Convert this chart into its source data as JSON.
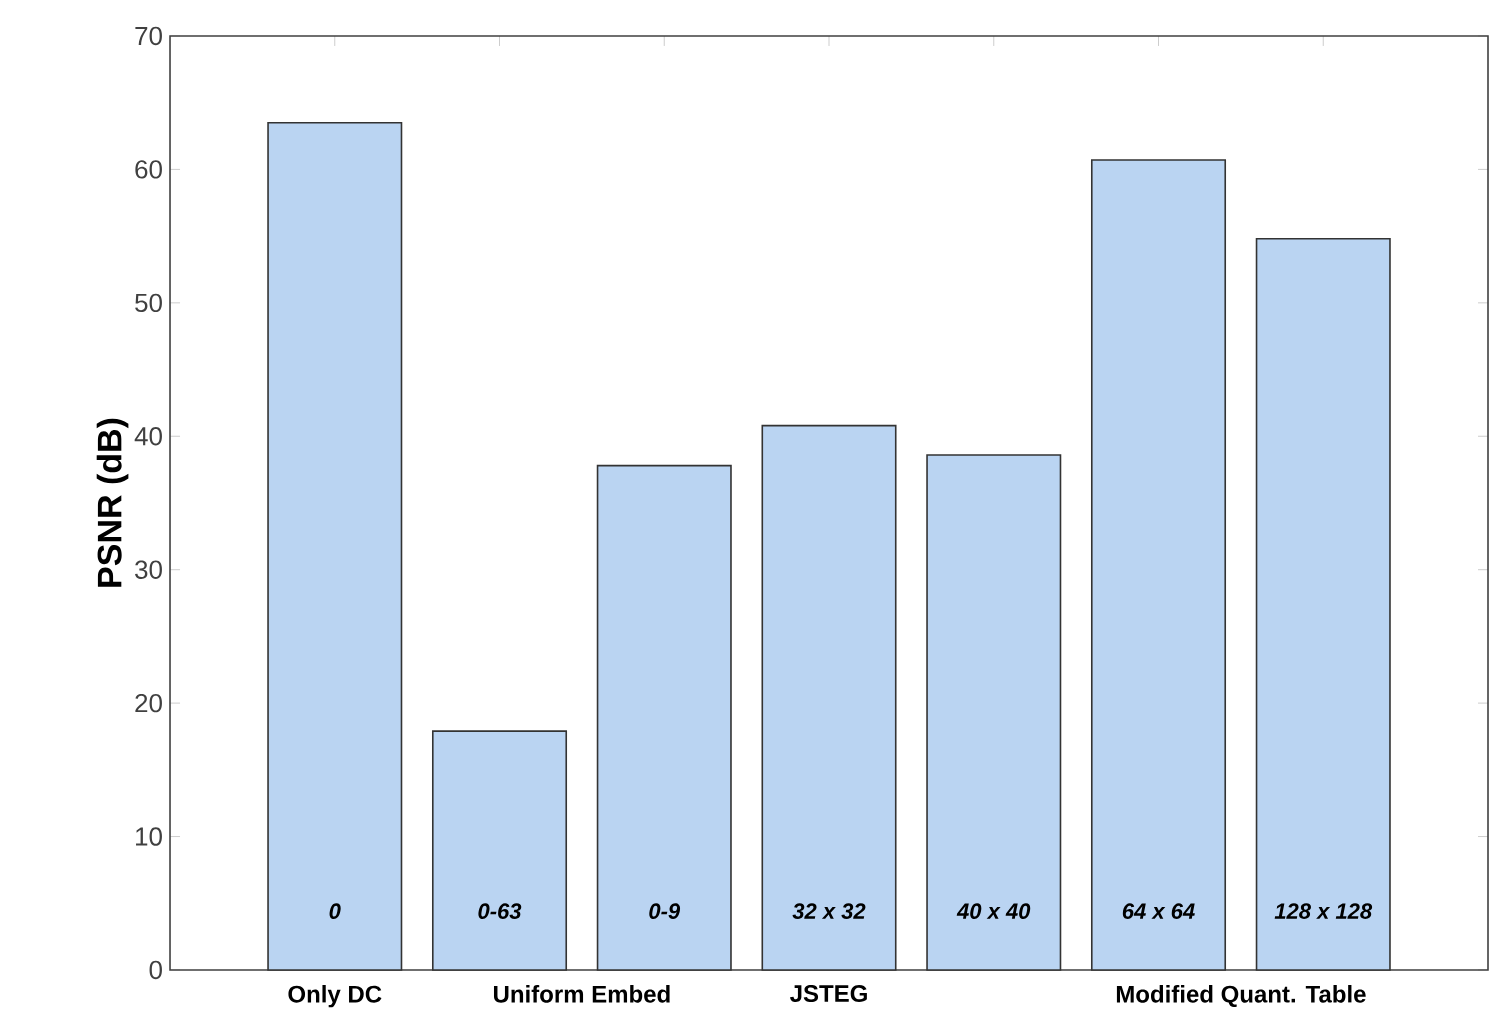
{
  "chart_data": {
    "type": "bar",
    "ylabel": "PSNR (dB)",
    "categories": [
      "0",
      "0-63",
      "0-9",
      "32 x 32",
      "40 x 40",
      "64 x 64",
      "128 x 128"
    ],
    "values": [
      63.5,
      17.9,
      37.8,
      40.8,
      38.6,
      60.7,
      54.8
    ],
    "color": "#bad4f2",
    "ylim": [
      0,
      70
    ],
    "yticks": [
      0,
      10,
      20,
      30,
      40,
      50,
      60,
      70
    ],
    "annotations": [
      "Only DC",
      "Uniform Embed",
      "JSTEG",
      "Modified Quant. Table"
    ]
  }
}
